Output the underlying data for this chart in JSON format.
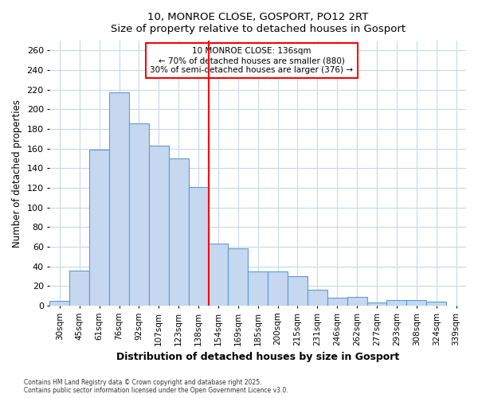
{
  "title1": "10, MONROE CLOSE, GOSPORT, PO12 2RT",
  "title2": "Size of property relative to detached houses in Gosport",
  "xlabel": "Distribution of detached houses by size in Gosport",
  "ylabel": "Number of detached properties",
  "categories": [
    "30sqm",
    "45sqm",
    "61sqm",
    "76sqm",
    "92sqm",
    "107sqm",
    "123sqm",
    "138sqm",
    "154sqm",
    "169sqm",
    "185sqm",
    "200sqm",
    "215sqm",
    "231sqm",
    "246sqm",
    "262sqm",
    "277sqm",
    "293sqm",
    "308sqm",
    "324sqm",
    "339sqm"
  ],
  "values": [
    5,
    36,
    159,
    217,
    186,
    163,
    150,
    121,
    63,
    58,
    35,
    35,
    30,
    16,
    8,
    9,
    3,
    6,
    6,
    4,
    0
  ],
  "bar_color": "#c5d8f0",
  "bar_edge_color": "#5b9bd5",
  "red_line_index": 7,
  "annotation_title": "10 MONROE CLOSE: 136sqm",
  "annotation_line1": "← 70% of detached houses are smaller (880)",
  "annotation_line2": "30% of semi-detached houses are larger (376) →",
  "ylim": [
    0,
    270
  ],
  "yticks": [
    0,
    20,
    40,
    60,
    80,
    100,
    120,
    140,
    160,
    180,
    200,
    220,
    240,
    260
  ],
  "footnote1": "Contains HM Land Registry data © Crown copyright and database right 2025.",
  "footnote2": "Contains public sector information licensed under the Open Government Licence v3.0.",
  "background_color": "#ffffff",
  "plot_bg_color": "#ffffff",
  "grid_color": "#c8d8ea"
}
